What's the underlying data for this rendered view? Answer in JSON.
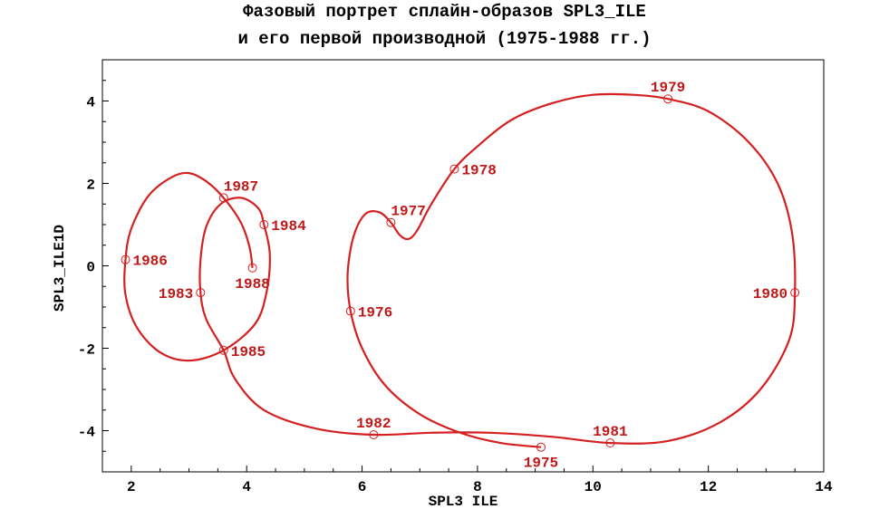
{
  "chart_data": {
    "type": "line",
    "title_lines": [
      "Фазовый портрет сплайн-образов SPL3_ILE",
      "и его первой производной (1975-1988 гг.)"
    ],
    "xlabel": "SPL3 ILE",
    "ylabel": "SPL3_ILE1D",
    "xlim": [
      1.5,
      14
    ],
    "ylim": [
      -5,
      5
    ],
    "x_ticks": [
      2,
      4,
      6,
      8,
      10,
      12,
      14
    ],
    "y_ticks": [
      -4,
      -2,
      0,
      2,
      4
    ],
    "grid": false,
    "line_color": "#d42020",
    "label_color": "#c01818",
    "points": [
      {
        "year": "1975",
        "x": 9.1,
        "y": -4.4
      },
      {
        "year": "1976",
        "x": 5.8,
        "y": -1.1
      },
      {
        "year": "1977",
        "x": 6.5,
        "y": 1.05
      },
      {
        "year": "1978",
        "x": 7.6,
        "y": 2.35
      },
      {
        "year": "1979",
        "x": 11.3,
        "y": 4.05
      },
      {
        "year": "1980",
        "x": 13.5,
        "y": -0.65
      },
      {
        "year": "1981",
        "x": 10.3,
        "y": -4.3
      },
      {
        "year": "1982",
        "x": 6.2,
        "y": -4.1
      },
      {
        "year": "1983",
        "x": 3.2,
        "y": -0.65
      },
      {
        "year": "1984",
        "x": 4.3,
        "y": 1.0
      },
      {
        "year": "1985",
        "x": 3.6,
        "y": -2.05
      },
      {
        "year": "1986",
        "x": 1.9,
        "y": 0.15
      },
      {
        "year": "1987",
        "x": 3.6,
        "y": 1.65
      },
      {
        "year": "1988",
        "x": 4.1,
        "y": -0.05
      }
    ],
    "curve": [
      [
        9.1,
        -4.4
      ],
      [
        8.4,
        -4.3
      ],
      [
        7.7,
        -4.05
      ],
      [
        7.0,
        -3.6
      ],
      [
        6.4,
        -2.9
      ],
      [
        6.0,
        -2.0
      ],
      [
        5.8,
        -1.1
      ],
      [
        5.75,
        -0.2
      ],
      [
        5.85,
        0.7
      ],
      [
        6.05,
        1.25
      ],
      [
        6.3,
        1.3
      ],
      [
        6.5,
        1.05
      ],
      [
        6.65,
        0.75
      ],
      [
        6.8,
        0.65
      ],
      [
        6.95,
        0.85
      ],
      [
        7.2,
        1.5
      ],
      [
        7.6,
        2.35
      ],
      [
        8.0,
        2.9
      ],
      [
        8.6,
        3.55
      ],
      [
        9.3,
        3.95
      ],
      [
        10.0,
        4.15
      ],
      [
        10.7,
        4.15
      ],
      [
        11.3,
        4.05
      ],
      [
        12.0,
        3.75
      ],
      [
        12.7,
        3.0
      ],
      [
        13.2,
        2.0
      ],
      [
        13.45,
        0.8
      ],
      [
        13.5,
        -0.65
      ],
      [
        13.4,
        -1.8
      ],
      [
        12.9,
        -3.0
      ],
      [
        12.2,
        -3.8
      ],
      [
        11.3,
        -4.25
      ],
      [
        10.3,
        -4.3
      ],
      [
        9.3,
        -4.15
      ],
      [
        8.2,
        -4.05
      ],
      [
        7.2,
        -4.05
      ],
      [
        6.2,
        -4.1
      ],
      [
        5.2,
        -3.95
      ],
      [
        4.3,
        -3.5
      ],
      [
        3.8,
        -2.75
      ],
      [
        3.6,
        -2.05
      ],
      [
        3.3,
        -1.3
      ],
      [
        3.2,
        -0.65
      ],
      [
        3.2,
        0.15
      ],
      [
        3.3,
        0.95
      ],
      [
        3.55,
        1.5
      ],
      [
        3.9,
        1.65
      ],
      [
        4.2,
        1.4
      ],
      [
        4.3,
        1.0
      ],
      [
        4.4,
        0.3
      ],
      [
        4.35,
        -0.6
      ],
      [
        4.15,
        -1.4
      ],
      [
        3.6,
        -2.05
      ],
      [
        3.0,
        -2.3
      ],
      [
        2.5,
        -2.1
      ],
      [
        2.1,
        -1.5
      ],
      [
        1.9,
        -0.7
      ],
      [
        1.9,
        0.15
      ],
      [
        2.0,
        0.9
      ],
      [
        2.3,
        1.7
      ],
      [
        2.7,
        2.15
      ],
      [
        3.0,
        2.25
      ],
      [
        3.3,
        2.05
      ],
      [
        3.6,
        1.65
      ],
      [
        3.9,
        1.05
      ],
      [
        4.05,
        0.45
      ],
      [
        4.1,
        -0.05
      ]
    ],
    "label_positions": {
      "1975": "below",
      "1976": "right",
      "1977": "above-right",
      "1978": "right",
      "1979": "above",
      "1980": "left",
      "1981": "above",
      "1982": "above",
      "1983": "left",
      "1984": "right",
      "1985": "right",
      "1986": "right",
      "1987": "above-right",
      "1988": "below"
    }
  }
}
